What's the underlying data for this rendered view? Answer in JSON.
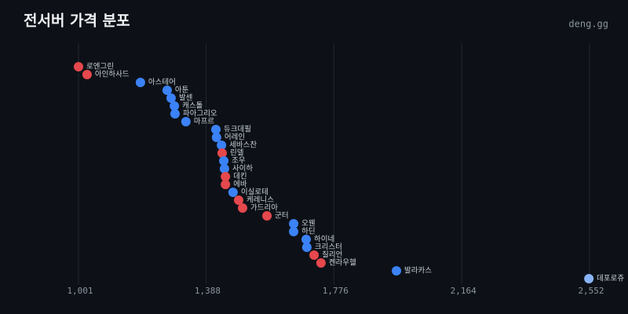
{
  "chart_data": {
    "type": "dot",
    "title": "전서버 가격 분포",
    "brand": "deng.gg",
    "xlim": [
      1001,
      2552
    ],
    "xticks": [
      {
        "value": 1001,
        "label": "1,001"
      },
      {
        "value": 1388,
        "label": "1,388"
      },
      {
        "value": 1776,
        "label": "1,776"
      },
      {
        "value": 2164,
        "label": "2,164"
      },
      {
        "value": 2552,
        "label": "2,552"
      }
    ],
    "grid": true,
    "points": [
      {
        "name": "로엔그린",
        "value": 1001,
        "color": "#e5484d"
      },
      {
        "name": "아인하사드",
        "value": 1027,
        "color": "#e5484d"
      },
      {
        "name": "아스테어",
        "value": 1189,
        "color": "#3b82f6"
      },
      {
        "name": "아툰",
        "value": 1270,
        "color": "#3b82f6"
      },
      {
        "name": "발센",
        "value": 1282,
        "color": "#3b82f6"
      },
      {
        "name": "캐스톨",
        "value": 1292,
        "color": "#3b82f6"
      },
      {
        "name": "파아그리오",
        "value": 1294,
        "color": "#3b82f6"
      },
      {
        "name": "마프르",
        "value": 1327,
        "color": "#3b82f6"
      },
      {
        "name": "듀크데필",
        "value": 1418,
        "color": "#3b82f6"
      },
      {
        "name": "어레인",
        "value": 1420,
        "color": "#3b82f6"
      },
      {
        "name": "세바스찬",
        "value": 1435,
        "color": "#3b82f6"
      },
      {
        "name": "린델",
        "value": 1437,
        "color": "#e5484d"
      },
      {
        "name": "조우",
        "value": 1442,
        "color": "#3b82f6"
      },
      {
        "name": "사이하",
        "value": 1444,
        "color": "#3b82f6"
      },
      {
        "name": "데킨",
        "value": 1447,
        "color": "#e5484d"
      },
      {
        "name": "에바",
        "value": 1447,
        "color": "#e5484d"
      },
      {
        "name": "이실로테",
        "value": 1470,
        "color": "#3b82f6"
      },
      {
        "name": "케레니스",
        "value": 1487,
        "color": "#e5484d"
      },
      {
        "name": "가드리아",
        "value": 1499,
        "color": "#e5484d"
      },
      {
        "name": "군터",
        "value": 1573,
        "color": "#e5484d"
      },
      {
        "name": "오웬",
        "value": 1654,
        "color": "#3b82f6"
      },
      {
        "name": "하딘",
        "value": 1654,
        "color": "#3b82f6"
      },
      {
        "name": "하이네",
        "value": 1692,
        "color": "#3b82f6"
      },
      {
        "name": "크리스터",
        "value": 1694,
        "color": "#3b82f6"
      },
      {
        "name": "질리언",
        "value": 1716,
        "color": "#e5484d"
      },
      {
        "name": "켄라우헬",
        "value": 1737,
        "color": "#e5484d"
      },
      {
        "name": "발라카스",
        "value": 1966,
        "color": "#3b82f6"
      },
      {
        "name": "데포로쥬",
        "value": 2550,
        "color": "#8ab4f8"
      }
    ]
  }
}
